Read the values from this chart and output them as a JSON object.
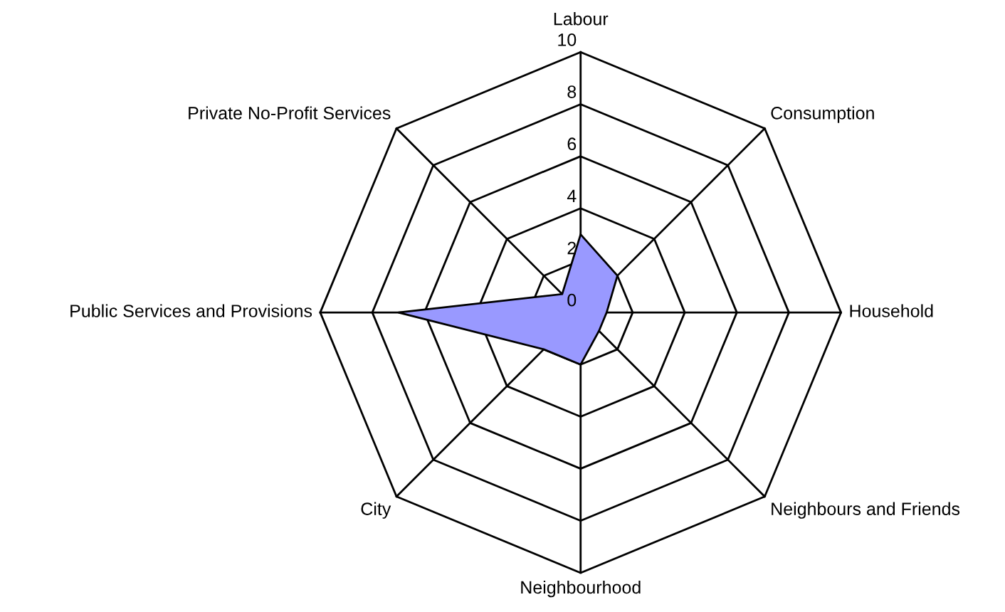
{
  "chart_data": {
    "type": "radar",
    "categories": [
      "Labour",
      "Consumption",
      "Household",
      "Neighbours and Friends",
      "Neighbourhood",
      "City",
      "Public Services and Provisions",
      "Private No-Profit Services"
    ],
    "series": [
      {
        "color": "#9999ff",
        "values": [
          3,
          2,
          1,
          1,
          2,
          2,
          7,
          1
        ]
      }
    ],
    "ylim": [
      0,
      10
    ],
    "yticks": [
      0,
      2,
      4,
      6,
      8,
      10
    ],
    "grid": true,
    "legend": false
  }
}
